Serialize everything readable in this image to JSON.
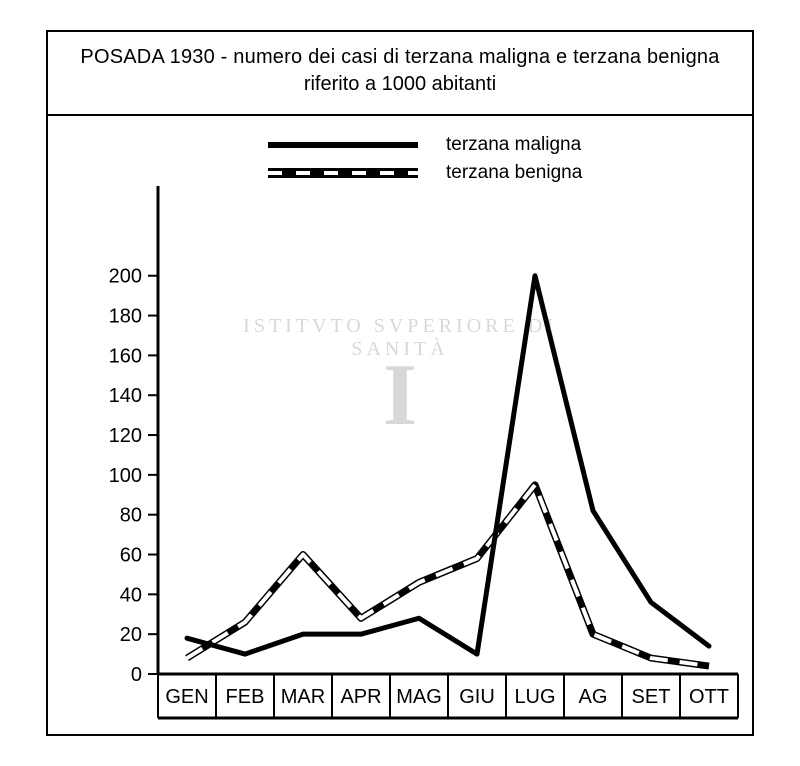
{
  "title": {
    "line1": "POSADA 1930 - numero dei casi di terzana maligna e terzana benigna",
    "line2": "riferito a 1000 abitanti"
  },
  "legend": {
    "series1": "terzana maligna",
    "series2": "terzana benigna"
  },
  "chart": {
    "type": "line",
    "x_categories": [
      "GEN",
      "FEB",
      "MAR",
      "APR",
      "MAG",
      "GIU",
      "LUG",
      "AG",
      "SET",
      "OTT"
    ],
    "y_ticks": [
      0,
      20,
      40,
      60,
      80,
      100,
      120,
      140,
      160,
      180,
      200
    ],
    "ylim": [
      0,
      230
    ],
    "series": {
      "maligna": {
        "label": "terzana maligna",
        "style": "solid",
        "color": "#000000",
        "line_width": 5,
        "values": [
          18,
          10,
          20,
          20,
          28,
          10,
          200,
          82,
          36,
          14
        ]
      },
      "benigna": {
        "label": "terzana benigna",
        "style": "dash-bicolor",
        "colors": [
          "#000000",
          "#ffffff"
        ],
        "line_width": 7,
        "dash": [
          18,
          12
        ],
        "values": [
          8,
          26,
          60,
          28,
          46,
          58,
          95,
          20,
          8,
          4
        ]
      }
    },
    "axis_color": "#000000",
    "axis_width": 3,
    "tick_length": 10,
    "background_color": "#ffffff",
    "label_fontsize": 20
  },
  "watermark": {
    "text_ring": "ISTITVTO SVPERIORE DI SANITÀ",
    "glyph": "I"
  }
}
